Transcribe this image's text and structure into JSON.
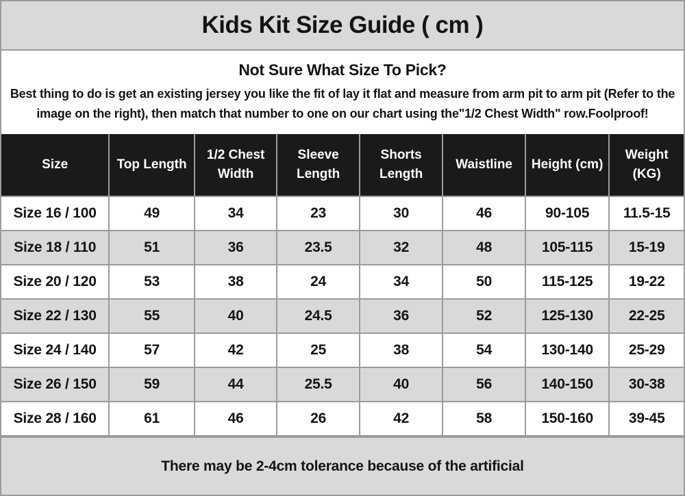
{
  "title": "Kids Kit Size Guide ( cm )",
  "intro": {
    "heading": "Not Sure What Size To Pick?",
    "body": "Best thing to do is get an existing jersey you like the fit of lay it flat and measure from arm pit to arm pit (Refer to the image on the right), then match that number to one on our chart using the\"1/2 Chest Width\" row.Foolproof!"
  },
  "table": {
    "columns": [
      "Size",
      "Top Length",
      "1/2 Chest Width",
      "Sleeve Length",
      "Shorts Length",
      "Waistline",
      "Height (cm)",
      "Weight (KG)"
    ],
    "rows": [
      [
        "Size 16 / 100",
        "49",
        "34",
        "23",
        "30",
        "46",
        "90-105",
        "11.5-15"
      ],
      [
        "Size 18 / 110",
        "51",
        "36",
        "23.5",
        "32",
        "48",
        "105-115",
        "15-19"
      ],
      [
        "Size 20 / 120",
        "53",
        "38",
        "24",
        "34",
        "50",
        "115-125",
        "19-22"
      ],
      [
        "Size 22 / 130",
        "55",
        "40",
        "24.5",
        "36",
        "52",
        "125-130",
        "22-25"
      ],
      [
        "Size 24 / 140",
        "57",
        "42",
        "25",
        "38",
        "54",
        "130-140",
        "25-29"
      ],
      [
        "Size 26 / 150",
        "59",
        "44",
        "25.5",
        "40",
        "56",
        "140-150",
        "30-38"
      ],
      [
        "Size 28 / 160",
        "61",
        "46",
        "26",
        "42",
        "58",
        "150-160",
        "39-45"
      ]
    ]
  },
  "footer_note": "There may be 2-4cm tolerance because of the artificial",
  "colors": {
    "band_gray": "#d9d9d9",
    "row_alt_gray": "#d9d9d9",
    "header_bg": "#1a1a1a",
    "header_text": "#ffffff",
    "grid_line": "#9b9b9b",
    "text": "#141414"
  },
  "chart_data": {
    "type": "table",
    "title": "Kids Kit Size Guide ( cm )",
    "columns": [
      "Size",
      "Top Length",
      "1/2 Chest Width",
      "Sleeve Length",
      "Shorts Length",
      "Waistline",
      "Height (cm)",
      "Weight (KG)"
    ],
    "rows": [
      [
        "Size 16 / 100",
        49,
        34,
        23,
        30,
        46,
        "90-105",
        "11.5-15"
      ],
      [
        "Size 18 / 110",
        51,
        36,
        23.5,
        32,
        48,
        "105-115",
        "15-19"
      ],
      [
        "Size 20 / 120",
        53,
        38,
        24,
        34,
        50,
        "115-125",
        "19-22"
      ],
      [
        "Size 22 / 130",
        55,
        40,
        24.5,
        36,
        52,
        "125-130",
        "22-25"
      ],
      [
        "Size 24 / 140",
        57,
        42,
        25,
        38,
        54,
        "130-140",
        "25-29"
      ],
      [
        "Size 26 / 150",
        59,
        44,
        25.5,
        40,
        56,
        "140-150",
        "30-38"
      ],
      [
        "Size 28 / 160",
        61,
        46,
        26,
        42,
        58,
        "150-160",
        "39-45"
      ]
    ],
    "units": "cm (weight in KG)",
    "footnote": "There may be 2-4cm tolerance because of the artificial"
  }
}
